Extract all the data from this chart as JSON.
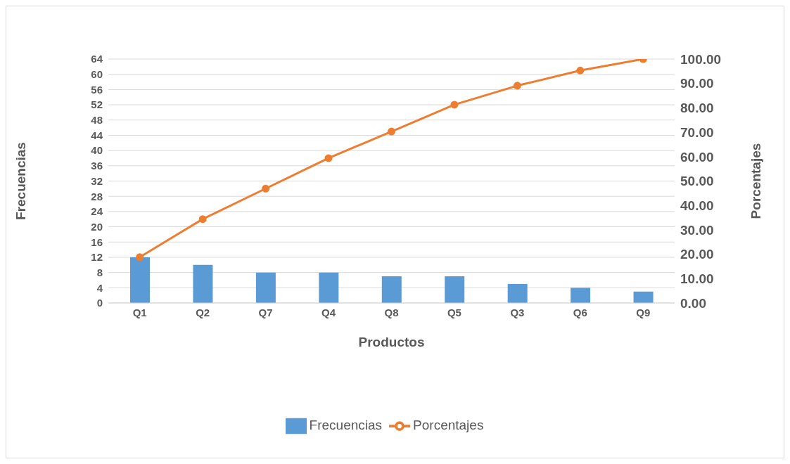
{
  "chart_data": {
    "type": "bar",
    "categories": [
      "Q1",
      "Q2",
      "Q7",
      "Q4",
      "Q8",
      "Q5",
      "Q3",
      "Q6",
      "Q9"
    ],
    "xlabel": "Productos",
    "ylabel": "Frecuencias",
    "y2label": "Porcentajes",
    "series": [
      {
        "name": "Frecuencias",
        "color": "#5b9bd5",
        "values": [
          12,
          10,
          8,
          8,
          7,
          7,
          5,
          4,
          3
        ]
      },
      {
        "name": "Porcentajes",
        "type": "line",
        "axis": "y2",
        "color": "#ed7d31",
        "values": [
          18.8,
          34.4,
          46.9,
          59.4,
          70.3,
          81.3,
          89.1,
          95.3,
          100
        ]
      }
    ],
    "ylim": [
      0,
      64
    ],
    "yticks": [
      0,
      4,
      8,
      12,
      16,
      20,
      24,
      28,
      32,
      36,
      40,
      44,
      48,
      52,
      56,
      60,
      64
    ],
    "y2lim": [
      0,
      100
    ],
    "y2ticks": [
      {
        "value": 0,
        "label": "0.00"
      },
      {
        "value": 10,
        "label": "10.00"
      },
      {
        "value": 20,
        "label": "20.00"
      },
      {
        "value": 30,
        "label": "30.00"
      },
      {
        "value": 40,
        "label": "40.00"
      },
      {
        "value": 50,
        "label": "50.00"
      },
      {
        "value": 60,
        "label": "60.00"
      },
      {
        "value": 70,
        "label": "70.00"
      },
      {
        "value": 80,
        "label": "80.00"
      },
      {
        "value": 90,
        "label": "90.00"
      },
      {
        "value": 100,
        "label": "100.00"
      }
    ],
    "grid": "y",
    "legend": "bottom",
    "marker": "circle",
    "line_style": "solid"
  }
}
